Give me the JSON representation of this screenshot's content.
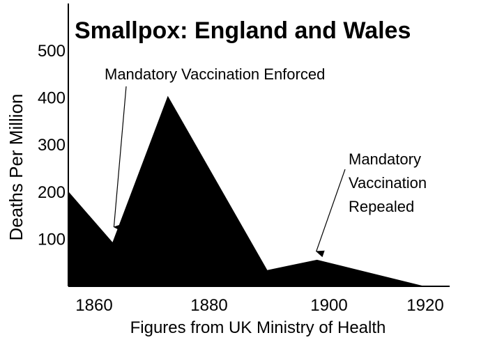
{
  "chart_data": {
    "type": "area",
    "title": "Smallpox: England and Wales",
    "ylabel": "Deaths Per Million",
    "xlabel": "Figures from UK Ministry of Health",
    "xlim": [
      1855,
      1924
    ],
    "ylim": [
      0,
      500
    ],
    "x_ticks": [
      1860,
      1880,
      1900,
      1920
    ],
    "y_ticks": [
      100,
      200,
      300,
      400,
      500
    ],
    "grid": false,
    "fill_color": "#000000",
    "points": [
      {
        "x": 1855,
        "y": 200
      },
      {
        "x": 1863,
        "y": 92
      },
      {
        "x": 1873,
        "y": 403
      },
      {
        "x": 1891,
        "y": 33
      },
      {
        "x": 1900,
        "y": 55
      },
      {
        "x": 1919,
        "y": 0
      },
      {
        "x": 1924,
        "y": 0
      }
    ],
    "annotations": [
      {
        "lines": [
          "Mandatory Vaccination Enforced"
        ],
        "x": 1863,
        "y": 92
      },
      {
        "lines": [
          "Mandatory",
          "Vaccination",
          "Repealed"
        ],
        "x": 1900,
        "y": 55
      }
    ]
  }
}
